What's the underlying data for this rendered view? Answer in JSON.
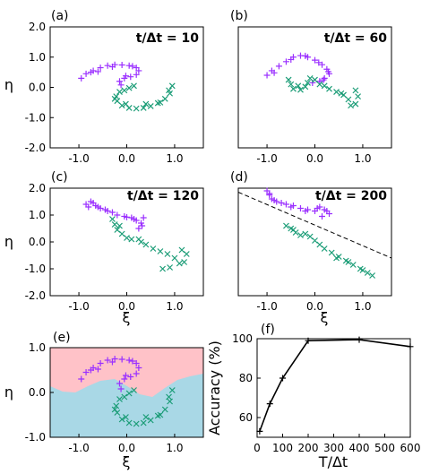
{
  "colors": {
    "purple": "#9b30ff",
    "green": "#1a9c76",
    "pink": "#ffc2c8",
    "blue": "#a9d8e6",
    "line": "#000000"
  },
  "chart_data": [
    {
      "panel": "(a)",
      "type": "scatter",
      "annotation": "t/Δt = 10",
      "xlabel": "",
      "ylabel": "η",
      "xlim": [
        -1.6,
        1.6
      ],
      "ylim": [
        -2.0,
        2.0
      ],
      "xticks": [
        "-1.0",
        "0.0",
        "1.0"
      ],
      "yticks": [
        "2.0",
        "1.0",
        "0.0",
        "-1.0",
        "-2.0"
      ],
      "series": [
        {
          "color": "purple",
          "marker": "+",
          "points": [
            [
              -0.95,
              0.3
            ],
            [
              -0.85,
              0.45
            ],
            [
              -0.7,
              0.55
            ],
            [
              -0.55,
              0.65
            ],
            [
              -0.4,
              0.72
            ],
            [
              -0.25,
              0.75
            ],
            [
              -0.1,
              0.74
            ],
            [
              0.05,
              0.72
            ],
            [
              0.2,
              0.65
            ],
            [
              0.25,
              0.55
            ],
            [
              0.2,
              0.42
            ],
            [
              0.08,
              0.35
            ],
            [
              -0.05,
              0.3
            ],
            [
              -0.15,
              0.2
            ],
            [
              -0.12,
              0.08
            ],
            [
              -0.6,
              0.52
            ],
            [
              -0.75,
              0.5
            ],
            [
              -0.3,
              0.68
            ],
            [
              0.12,
              0.7
            ],
            [
              -0.02,
              0.38
            ]
          ]
        },
        {
          "color": "green",
          "marker": "x",
          "points": [
            [
              0.95,
              0.05
            ],
            [
              0.9,
              -0.2
            ],
            [
              0.8,
              -0.38
            ],
            [
              0.65,
              -0.52
            ],
            [
              0.5,
              -0.62
            ],
            [
              0.35,
              -0.68
            ],
            [
              0.2,
              -0.7
            ],
            [
              0.05,
              -0.68
            ],
            [
              -0.1,
              -0.6
            ],
            [
              -0.2,
              -0.45
            ],
            [
              -0.22,
              -0.3
            ],
            [
              -0.15,
              -0.15
            ],
            [
              -0.05,
              -0.1
            ],
            [
              0.05,
              -0.02
            ],
            [
              0.15,
              0.05
            ],
            [
              -0.02,
              -0.55
            ],
            [
              0.4,
              -0.55
            ],
            [
              0.7,
              -0.5
            ],
            [
              0.88,
              -0.1
            ],
            [
              -0.25,
              -0.38
            ]
          ]
        }
      ]
    },
    {
      "panel": "(b)",
      "type": "scatter",
      "annotation": "t/Δt = 60",
      "xlabel": "",
      "ylabel": "",
      "xlim": [
        -1.6,
        1.6
      ],
      "ylim": [
        -2.0,
        2.0
      ],
      "xticks": [
        "-1.0",
        "0.0",
        "1.0"
      ],
      "yticks": [],
      "series": [
        {
          "color": "purple",
          "marker": "+",
          "points": [
            [
              -1.0,
              0.4
            ],
            [
              -0.9,
              0.55
            ],
            [
              -0.75,
              0.7
            ],
            [
              -0.6,
              0.85
            ],
            [
              -0.45,
              1.0
            ],
            [
              -0.3,
              1.05
            ],
            [
              -0.15,
              1.0
            ],
            [
              0.0,
              0.9
            ],
            [
              0.15,
              0.75
            ],
            [
              0.25,
              0.6
            ],
            [
              0.3,
              0.45
            ],
            [
              0.2,
              0.3
            ],
            [
              0.1,
              0.2
            ],
            [
              -0.05,
              0.15
            ],
            [
              -0.85,
              0.48
            ],
            [
              -0.5,
              0.92
            ],
            [
              0.08,
              0.82
            ],
            [
              0.28,
              0.52
            ],
            [
              -0.2,
              1.04
            ],
            [
              0.18,
              0.25
            ]
          ]
        },
        {
          "color": "green",
          "marker": "x",
          "points": [
            [
              -0.55,
              0.25
            ],
            [
              -0.5,
              0.1
            ],
            [
              -0.45,
              -0.05
            ],
            [
              -0.3,
              -0.08
            ],
            [
              -0.2,
              0.02
            ],
            [
              -0.15,
              0.15
            ],
            [
              -0.1,
              0.3
            ],
            [
              0.0,
              0.25
            ],
            [
              0.1,
              0.1
            ],
            [
              0.3,
              -0.05
            ],
            [
              0.45,
              -0.15
            ],
            [
              0.6,
              -0.25
            ],
            [
              0.7,
              -0.4
            ],
            [
              0.75,
              -0.6
            ],
            [
              0.85,
              -0.55
            ],
            [
              0.9,
              -0.3
            ],
            [
              0.85,
              -0.1
            ],
            [
              0.55,
              -0.2
            ],
            [
              -0.35,
              0.05
            ],
            [
              0.2,
              0.05
            ]
          ]
        }
      ]
    },
    {
      "panel": "(c)",
      "type": "scatter",
      "annotation": "t/Δt = 120",
      "xlabel": "ξ",
      "ylabel": "η",
      "xlim": [
        -1.6,
        1.6
      ],
      "ylim": [
        -2.0,
        2.0
      ],
      "xticks": [
        "-1.0",
        "0.0",
        "1.0"
      ],
      "yticks": [
        "2.0",
        "1.0",
        "0.0",
        "-1.0",
        "-2.0"
      ],
      "series": [
        {
          "color": "purple",
          "marker": "+",
          "points": [
            [
              -0.85,
              1.4
            ],
            [
              -0.8,
              1.3
            ],
            [
              -0.75,
              1.5
            ],
            [
              -0.65,
              1.35
            ],
            [
              -0.55,
              1.25
            ],
            [
              -0.45,
              1.2
            ],
            [
              -0.3,
              1.1
            ],
            [
              -0.2,
              1.0
            ],
            [
              -0.05,
              0.95
            ],
            [
              0.1,
              0.9
            ],
            [
              0.2,
              0.8
            ],
            [
              0.3,
              0.7
            ],
            [
              0.35,
              0.9
            ],
            [
              0.25,
              0.5
            ],
            [
              -0.7,
              1.45
            ],
            [
              -0.4,
              1.15
            ],
            [
              0.0,
              0.92
            ],
            [
              0.15,
              0.85
            ],
            [
              0.32,
              0.6
            ],
            [
              -0.6,
              1.3
            ]
          ]
        },
        {
          "color": "green",
          "marker": "x",
          "points": [
            [
              -0.3,
              0.85
            ],
            [
              -0.25,
              0.65
            ],
            [
              -0.2,
              0.45
            ],
            [
              -0.1,
              0.3
            ],
            [
              0.0,
              0.15
            ],
            [
              0.1,
              0.1
            ],
            [
              0.25,
              0.1
            ],
            [
              0.4,
              -0.1
            ],
            [
              0.55,
              -0.25
            ],
            [
              0.7,
              -0.35
            ],
            [
              0.85,
              -0.45
            ],
            [
              1.0,
              -0.6
            ],
            [
              1.1,
              -0.8
            ],
            [
              1.2,
              -0.75
            ],
            [
              1.25,
              -0.45
            ],
            [
              1.15,
              -0.3
            ],
            [
              0.9,
              -0.95
            ],
            [
              0.75,
              -1.0
            ],
            [
              -0.15,
              0.6
            ],
            [
              0.3,
              0.0
            ]
          ]
        }
      ]
    },
    {
      "panel": "(d)",
      "type": "scatter",
      "annotation": "t/Δt = 200",
      "xlabel": "ξ",
      "ylabel": "",
      "xlim": [
        -1.6,
        1.6
      ],
      "ylim": [
        -2.0,
        2.0
      ],
      "xticks": [
        "-1.0",
        "0.0",
        "1.0"
      ],
      "yticks": [],
      "boundary_line": [
        [
          -1.6,
          1.85
        ],
        [
          1.6,
          -0.6
        ]
      ],
      "series": [
        {
          "color": "purple",
          "marker": "+",
          "points": [
            [
              -1.0,
              1.9
            ],
            [
              -0.95,
              1.75
            ],
            [
              -0.9,
              1.6
            ],
            [
              -0.8,
              1.5
            ],
            [
              -0.7,
              1.45
            ],
            [
              -0.6,
              1.4
            ],
            [
              -0.45,
              1.35
            ],
            [
              -0.3,
              1.25
            ],
            [
              -0.15,
              1.2
            ],
            [
              0.0,
              1.15
            ],
            [
              0.1,
              1.3
            ],
            [
              0.2,
              1.2
            ],
            [
              0.3,
              1.05
            ],
            [
              0.15,
              0.95
            ],
            [
              -0.85,
              1.55
            ],
            [
              -0.5,
              1.3
            ],
            [
              -0.2,
              1.15
            ],
            [
              0.05,
              1.25
            ],
            [
              0.25,
              1.15
            ],
            [
              -0.95,
              1.8
            ]
          ]
        },
        {
          "color": "green",
          "marker": "x",
          "points": [
            [
              -0.6,
              0.6
            ],
            [
              -0.5,
              0.5
            ],
            [
              -0.4,
              0.35
            ],
            [
              -0.3,
              0.25
            ],
            [
              -0.2,
              0.3
            ],
            [
              -0.1,
              0.2
            ],
            [
              0.0,
              0.05
            ],
            [
              0.1,
              -0.1
            ],
            [
              0.2,
              -0.25
            ],
            [
              0.35,
              -0.4
            ],
            [
              0.5,
              -0.55
            ],
            [
              0.65,
              -0.7
            ],
            [
              0.8,
              -0.85
            ],
            [
              0.95,
              -1.0
            ],
            [
              1.1,
              -1.15
            ],
            [
              1.2,
              -1.25
            ],
            [
              0.45,
              -0.6
            ],
            [
              -0.45,
              0.45
            ],
            [
              0.7,
              -0.75
            ],
            [
              1.0,
              -1.05
            ]
          ]
        }
      ]
    },
    {
      "panel": "(e)",
      "type": "scatter",
      "annotation": "",
      "xlabel": "ξ",
      "ylabel": "η",
      "xlim": [
        -1.6,
        1.6
      ],
      "ylim": [
        -1.0,
        1.0
      ],
      "xticks": [
        "-1.0",
        "0.0",
        "1.0"
      ],
      "yticks": [
        "1.0",
        "0.0",
        "-1.0"
      ],
      "regions": [
        "pink (upper, class 1)",
        "light blue (lower, class 2)"
      ],
      "series": [
        {
          "color": "purple",
          "marker": "+",
          "points": [
            [
              -0.95,
              0.3
            ],
            [
              -0.85,
              0.45
            ],
            [
              -0.7,
              0.55
            ],
            [
              -0.55,
              0.65
            ],
            [
              -0.4,
              0.72
            ],
            [
              -0.25,
              0.75
            ],
            [
              -0.1,
              0.74
            ],
            [
              0.05,
              0.72
            ],
            [
              0.2,
              0.65
            ],
            [
              0.25,
              0.55
            ],
            [
              0.2,
              0.42
            ],
            [
              0.08,
              0.35
            ],
            [
              -0.05,
              0.3
            ],
            [
              -0.15,
              0.2
            ],
            [
              -0.12,
              0.08
            ],
            [
              -0.6,
              0.52
            ],
            [
              -0.75,
              0.5
            ],
            [
              -0.3,
              0.68
            ],
            [
              0.12,
              0.7
            ],
            [
              -0.02,
              0.38
            ]
          ]
        },
        {
          "color": "green",
          "marker": "x",
          "points": [
            [
              0.95,
              0.05
            ],
            [
              0.9,
              -0.2
            ],
            [
              0.8,
              -0.38
            ],
            [
              0.65,
              -0.52
            ],
            [
              0.5,
              -0.62
            ],
            [
              0.35,
              -0.68
            ],
            [
              0.2,
              -0.7
            ],
            [
              0.05,
              -0.68
            ],
            [
              -0.1,
              -0.6
            ],
            [
              -0.2,
              -0.45
            ],
            [
              -0.22,
              -0.3
            ],
            [
              -0.15,
              -0.15
            ],
            [
              -0.05,
              -0.1
            ],
            [
              0.05,
              -0.02
            ],
            [
              0.15,
              0.05
            ],
            [
              -0.02,
              -0.55
            ],
            [
              0.4,
              -0.55
            ],
            [
              0.7,
              -0.5
            ],
            [
              0.88,
              -0.1
            ],
            [
              -0.25,
              -0.38
            ]
          ]
        }
      ]
    },
    {
      "panel": "(f)",
      "type": "line",
      "annotation": "",
      "xlabel": "T/Δt",
      "ylabel": "Accuracy (%)",
      "xlim": [
        0,
        600
      ],
      "ylim": [
        50,
        100
      ],
      "xticks": [
        "0",
        "100",
        "200",
        "300",
        "400",
        "500",
        "600"
      ],
      "yticks": [
        "100",
        "80",
        "60"
      ],
      "series": [
        {
          "color": "line",
          "marker": "+",
          "x": [
            10,
            50,
            100,
            200,
            400,
            600
          ],
          "y": [
            53,
            67,
            80,
            99,
            99.5,
            96
          ]
        }
      ]
    }
  ]
}
